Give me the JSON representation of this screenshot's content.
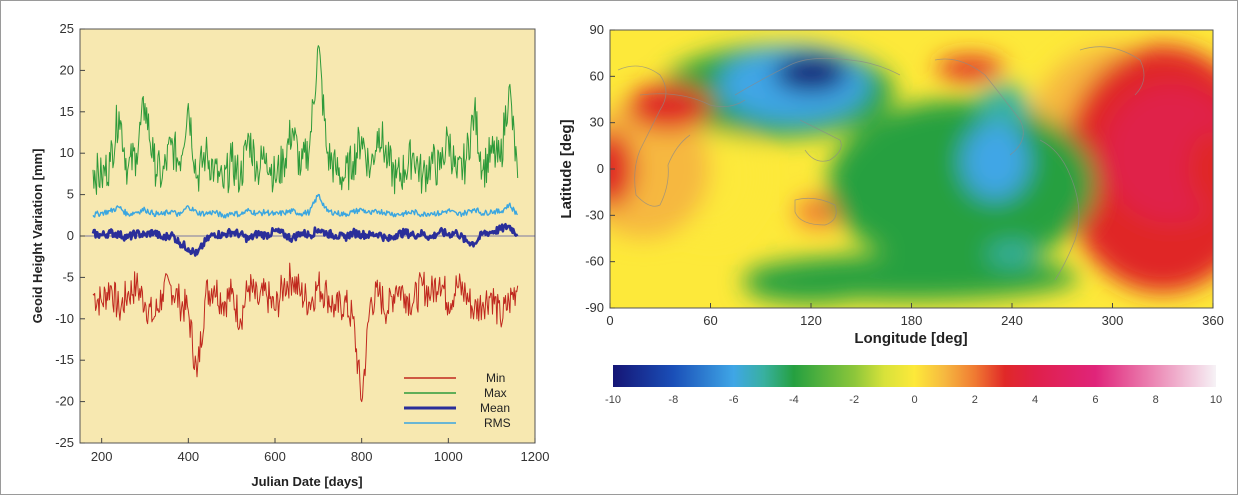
{
  "chart_data": [
    {
      "type": "line",
      "xlabel": "Julian Date [days]",
      "ylabel": "Geoid Height Variation [mm]",
      "xlim": [
        150,
        1200
      ],
      "ylim": [
        -25,
        25
      ],
      "xticks": [
        200,
        400,
        600,
        800,
        1000,
        1200
      ],
      "yticks": [
        -25,
        -20,
        -15,
        -10,
        -5,
        0,
        5,
        10,
        15,
        20,
        25
      ],
      "background": "#f7e8b0",
      "legend_position": "bottom-right",
      "x_range_of_series": [
        180,
        1160
      ],
      "series": [
        {
          "name": "Min",
          "color": "#c0281e",
          "x": [
            180,
            200,
            220,
            240,
            260,
            280,
            300,
            320,
            340,
            360,
            380,
            400,
            420,
            440,
            460,
            480,
            500,
            520,
            540,
            560,
            580,
            600,
            620,
            640,
            660,
            680,
            700,
            720,
            740,
            760,
            780,
            800,
            820,
            840,
            860,
            880,
            900,
            920,
            940,
            960,
            980,
            1000,
            1020,
            1040,
            1060,
            1080,
            1100,
            1120,
            1140,
            1160
          ],
          "values": [
            -7,
            -8,
            -6,
            -9,
            -7,
            -6,
            -8,
            -10,
            -7,
            -6,
            -8,
            -9,
            -17,
            -7,
            -6,
            -8,
            -7,
            -10,
            -6,
            -8,
            -7,
            -9,
            -6,
            -5,
            -7,
            -8,
            -6,
            -7,
            -9,
            -8,
            -10,
            -20,
            -8,
            -7,
            -9,
            -6,
            -7,
            -8,
            -6,
            -7,
            -5,
            -8,
            -6,
            -7,
            -9,
            -8,
            -7,
            -10,
            -8,
            -6
          ]
        },
        {
          "name": "Max",
          "color": "#2e9a3a",
          "x": [
            180,
            200,
            220,
            240,
            260,
            280,
            300,
            320,
            340,
            360,
            380,
            400,
            420,
            440,
            460,
            480,
            500,
            520,
            540,
            560,
            580,
            600,
            620,
            640,
            660,
            680,
            700,
            720,
            740,
            760,
            780,
            800,
            820,
            840,
            860,
            880,
            900,
            920,
            940,
            960,
            980,
            1000,
            1020,
            1040,
            1060,
            1080,
            1100,
            1120,
            1140,
            1160
          ],
          "values": [
            8,
            7,
            9,
            15,
            8,
            10,
            16,
            9,
            7,
            11,
            9,
            16,
            7,
            10,
            8,
            6,
            9,
            7,
            12,
            8,
            10,
            7,
            9,
            13,
            8,
            11,
            23,
            10,
            8,
            7,
            9,
            12,
            8,
            13,
            9,
            7,
            8,
            10,
            7,
            9,
            8,
            12,
            7,
            9,
            15,
            8,
            10,
            9,
            18,
            7
          ]
        },
        {
          "name": "Mean",
          "color": "#2a2e9a",
          "x": [
            180,
            200,
            220,
            240,
            260,
            280,
            300,
            320,
            340,
            360,
            380,
            400,
            420,
            440,
            460,
            480,
            500,
            520,
            540,
            560,
            580,
            600,
            620,
            640,
            660,
            680,
            700,
            720,
            740,
            760,
            780,
            800,
            820,
            840,
            860,
            880,
            900,
            920,
            940,
            960,
            980,
            1000,
            1020,
            1040,
            1060,
            1080,
            1100,
            1120,
            1140,
            1160
          ],
          "values": [
            0.3,
            0.1,
            0.4,
            0.2,
            -0.2,
            0.3,
            0.1,
            0.5,
            -0.3,
            0.2,
            -0.8,
            -1.5,
            -2.2,
            -0.6,
            0.3,
            0.1,
            0.5,
            0.2,
            -0.4,
            0.3,
            0.1,
            0.6,
            0.2,
            -0.3,
            0.4,
            0.1,
            0.8,
            0.3,
            0.1,
            -0.2,
            0.4,
            0.2,
            0.1,
            0.3,
            -0.5,
            0.2,
            0.4,
            0.1,
            0.3,
            -0.2,
            0.5,
            0.2,
            0.4,
            -0.6,
            -0.9,
            0.3,
            0.5,
            0.8,
            1.2,
            0.2
          ]
        },
        {
          "name": "RMS",
          "color": "#3aa6e0",
          "x": [
            180,
            200,
            220,
            240,
            260,
            280,
            300,
            320,
            340,
            360,
            380,
            400,
            420,
            440,
            460,
            480,
            500,
            520,
            540,
            560,
            580,
            600,
            620,
            640,
            660,
            680,
            700,
            720,
            740,
            760,
            780,
            800,
            820,
            840,
            860,
            880,
            900,
            920,
            940,
            960,
            980,
            1000,
            1020,
            1040,
            1060,
            1080,
            1100,
            1120,
            1140,
            1160
          ],
          "values": [
            2.5,
            2.8,
            3.0,
            3.5,
            2.6,
            2.9,
            3.2,
            2.7,
            2.6,
            3.0,
            2.5,
            3.6,
            2.8,
            2.7,
            2.9,
            2.4,
            2.8,
            2.6,
            3.1,
            2.7,
            2.9,
            2.6,
            2.8,
            3.0,
            2.7,
            2.9,
            5.0,
            3.0,
            2.8,
            2.6,
            2.9,
            3.2,
            2.7,
            3.0,
            2.8,
            2.6,
            2.7,
            2.9,
            2.6,
            2.8,
            2.7,
            3.1,
            2.6,
            2.8,
            3.3,
            2.7,
            3.0,
            2.9,
            3.8,
            2.6
          ]
        }
      ]
    },
    {
      "type": "heatmap",
      "xlabel": "Longitude [deg]",
      "ylabel": "Latitude [deg]",
      "xlim": [
        0,
        360
      ],
      "ylim": [
        -90,
        90
      ],
      "xticks": [
        0,
        60,
        120,
        180,
        240,
        300,
        360
      ],
      "yticks": [
        -90,
        -60,
        -30,
        0,
        30,
        60,
        90
      ],
      "colorbar": {
        "min": -10,
        "max": 10,
        "ticks": [
          -10,
          -8,
          -6,
          -4,
          -2,
          0,
          2,
          4,
          6,
          8,
          10
        ],
        "stops": [
          {
            "v": -10,
            "color": "#151575"
          },
          {
            "v": -8,
            "color": "#1a4fb8"
          },
          {
            "v": -6,
            "color": "#3fa6e6"
          },
          {
            "v": -5,
            "color": "#38b0a0"
          },
          {
            "v": -4,
            "color": "#25a040"
          },
          {
            "v": -2,
            "color": "#8cc63a"
          },
          {
            "v": -1,
            "color": "#d8e23a"
          },
          {
            "v": 0,
            "color": "#fde93a"
          },
          {
            "v": 1,
            "color": "#f6b840"
          },
          {
            "v": 2,
            "color": "#f07a32"
          },
          {
            "v": 3,
            "color": "#e02828"
          },
          {
            "v": 4,
            "color": "#e0204a"
          },
          {
            "v": 6,
            "color": "#e0247a"
          },
          {
            "v": 8,
            "color": "#ec8ab6"
          },
          {
            "v": 10,
            "color": "#f6f2f6"
          }
        ]
      },
      "features": [
        {
          "lon": 120,
          "lat": 62,
          "value": -10,
          "sx": 22,
          "sy": 12
        },
        {
          "lon": 110,
          "lat": 55,
          "value": -6,
          "sx": 45,
          "sy": 25
        },
        {
          "lon": 100,
          "lat": 50,
          "value": -3,
          "sx": 70,
          "sy": 30
        },
        {
          "lon": 35,
          "lat": 40,
          "value": 3,
          "sx": 25,
          "sy": 15
        },
        {
          "lon": 0,
          "lat": 0,
          "value": 3,
          "sx": 15,
          "sy": 25
        },
        {
          "lon": 20,
          "lat": 0,
          "value": 1.5,
          "sx": 40,
          "sy": 45
        },
        {
          "lon": 60,
          "lat": -5,
          "value": 0.5,
          "sx": 30,
          "sy": 40
        },
        {
          "lon": 125,
          "lat": -28,
          "value": 2,
          "sx": 15,
          "sy": 10
        },
        {
          "lon": 120,
          "lat": -75,
          "value": -4,
          "sx": 40,
          "sy": 12
        },
        {
          "lon": 210,
          "lat": -10,
          "value": -4,
          "sx": 80,
          "sy": 55
        },
        {
          "lon": 230,
          "lat": 5,
          "value": -5.5,
          "sx": 20,
          "sy": 25
        },
        {
          "lon": 235,
          "lat": 40,
          "value": -5,
          "sx": 15,
          "sy": 15
        },
        {
          "lon": 240,
          "lat": -55,
          "value": -5,
          "sx": 15,
          "sy": 8
        },
        {
          "lon": 215,
          "lat": 65,
          "value": 3.5,
          "sx": 20,
          "sy": 8
        },
        {
          "lon": 335,
          "lat": 10,
          "value": 4.5,
          "sx": 40,
          "sy": 45
        },
        {
          "lon": 330,
          "lat": 0,
          "value": 3,
          "sx": 60,
          "sy": 80
        },
        {
          "lon": 300,
          "lat": 20,
          "value": 1,
          "sx": 50,
          "sy": 60
        },
        {
          "lon": 180,
          "lat": -70,
          "value": -3,
          "sx": 100,
          "sy": 15
        }
      ]
    }
  ]
}
